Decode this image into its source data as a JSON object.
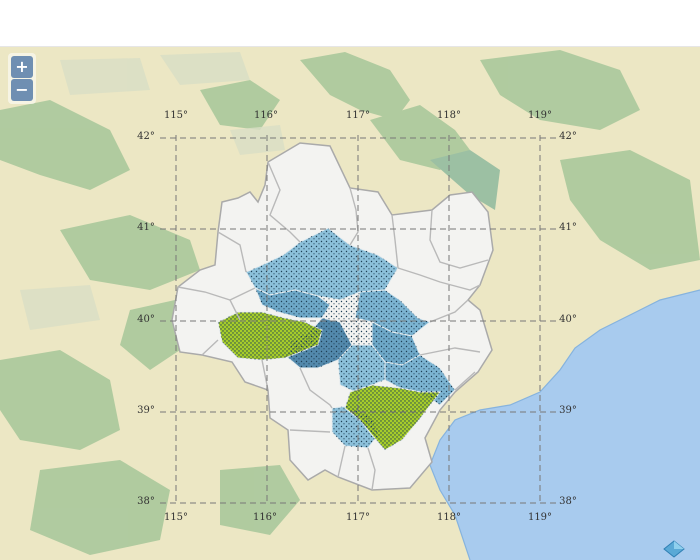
{
  "map": {
    "zoom_in_label": "+",
    "zoom_out_label": "−",
    "longitude_labels": [
      "115°",
      "116°",
      "117°",
      "118°",
      "119°"
    ],
    "latitude_labels": [
      "42°",
      "41°",
      "40°",
      "39°",
      "38°"
    ],
    "colors": {
      "background_terrain": "#ece7c4",
      "vegetation": "#aac89c",
      "sea": "#a8cbee",
      "highlight_green": "#a6cc2a",
      "blue_light": "#8cc0da",
      "blue_mid": "#6ea8c8",
      "blue_dark": "#5389ac",
      "region_outline": "#f3f3f1",
      "border": "#aaaaaa",
      "grid": "#777777"
    },
    "icons": [
      "plus-icon",
      "minus-icon",
      "diamond-icon"
    ]
  }
}
